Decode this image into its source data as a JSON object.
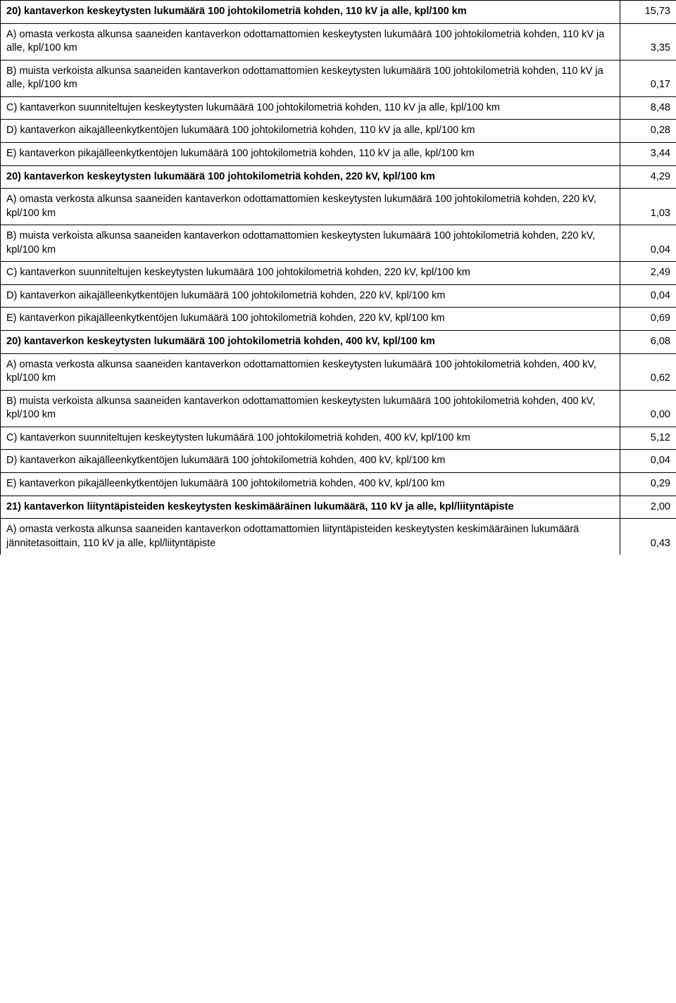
{
  "rows": [
    {
      "bold": true,
      "label": "20) kantaverkon keskeytysten lukumäärä 100 johtokilometriä kohden, 110 kV ja alle, kpl/100 km",
      "value": "15,73"
    },
    {
      "bold": false,
      "label": "A) omasta verkosta alkunsa saaneiden kantaverkon odottamattomien keskeytysten lukumäärä 100 johtokilometriä kohden, 110 kV ja alle, kpl/100 km",
      "value": "3,35"
    },
    {
      "bold": false,
      "label": "B) muista verkoista alkunsa saaneiden kantaverkon odottamattomien keskeytysten lukumäärä 100 johtokilometriä kohden, 110 kV ja alle, kpl/100 km",
      "value": "0,17"
    },
    {
      "bold": false,
      "label": "C) kantaverkon suunniteltujen keskeytysten lukumäärä 100 johtokilometriä kohden, 110 kV ja alle, kpl/100 km",
      "value": "8,48"
    },
    {
      "bold": false,
      "label": "D) kantaverkon aikajälleenkytkentöjen lukumäärä 100 johtokilometriä kohden, 110 kV ja alle, kpl/100 km",
      "value": "0,28"
    },
    {
      "bold": false,
      "label": "E) kantaverkon pikajälleenkytkentöjen lukumäärä 100 johtokilometriä kohden, 110 kV ja alle, kpl/100 km",
      "value": "3,44"
    },
    {
      "bold": true,
      "label": "20) kantaverkon keskeytysten lukumäärä 100 johtokilometriä kohden, 220 kV, kpl/100 km",
      "value": "4,29"
    },
    {
      "bold": false,
      "label": "A) omasta verkosta alkunsa saaneiden kantaverkon odottamattomien keskeytysten lukumäärä 100 johtokilometriä kohden, 220 kV, kpl/100 km",
      "value": "1,03"
    },
    {
      "bold": false,
      "label": "B) muista verkoista alkunsa saaneiden kantaverkon odottamattomien keskeytysten lukumäärä 100 johtokilometriä kohden, 220 kV, kpl/100 km",
      "value": "0,04"
    },
    {
      "bold": false,
      "label": "C) kantaverkon suunniteltujen keskeytysten lukumäärä 100 johtokilometriä kohden, 220 kV, kpl/100 km",
      "value": "2,49"
    },
    {
      "bold": false,
      "label": "D) kantaverkon aikajälleenkytkentöjen lukumäärä 100 johtokilometriä kohden, 220 kV, kpl/100 km",
      "value": "0,04"
    },
    {
      "bold": false,
      "label": "E) kantaverkon pikajälleenkytkentöjen lukumäärä 100 johtokilometriä kohden, 220 kV, kpl/100 km",
      "value": "0,69"
    },
    {
      "bold": true,
      "label": "20) kantaverkon keskeytysten lukumäärä 100 johtokilometriä kohden, 400 kV, kpl/100 km",
      "value": "6,08"
    },
    {
      "bold": false,
      "label": "A) omasta verkosta alkunsa saaneiden kantaverkon odottamattomien keskeytysten lukumäärä 100 johtokilometriä kohden, 400 kV, kpl/100 km",
      "value": "0,62"
    },
    {
      "bold": false,
      "label": "B) muista verkoista alkunsa saaneiden kantaverkon odottamattomien keskeytysten lukumäärä 100 johtokilometriä kohden, 400 kV, kpl/100 km",
      "value": "0,00"
    },
    {
      "bold": false,
      "label": "C) kantaverkon suunniteltujen keskeytysten lukumäärä 100 johtokilometriä kohden, 400 kV, kpl/100 km",
      "value": "5,12"
    },
    {
      "bold": false,
      "label": "D) kantaverkon aikajälleenkytkentöjen lukumäärä 100 johtokilometriä kohden, 400 kV, kpl/100 km",
      "value": "0,04"
    },
    {
      "bold": false,
      "label": "E) kantaverkon pikajälleenkytkentöjen lukumäärä 100 johtokilometriä kohden, 400 kV, kpl/100 km",
      "value": "0,29"
    },
    {
      "bold": true,
      "label": "21) kantaverkon liityntäpisteiden keskeytysten keskimääräinen lukumäärä, 110 kV ja alle, kpl/liityntäpiste",
      "value": "2,00"
    },
    {
      "bold": false,
      "label": "A) omasta verkosta alkunsa saaneiden kantaverkon odottamattomien liityntäpisteiden keskeytysten keskimääräinen lukumäärä jännitetasoittain, 110 kV ja alle, kpl/liityntäpiste",
      "value": "0,43",
      "lastOpen": true
    }
  ],
  "style": {
    "fontSize": 14.5,
    "fontFamily": "Arial, Helvetica, sans-serif",
    "textColor": "#000000",
    "borderColor": "#000000",
    "backgroundColor": "#ffffff",
    "labelColWidth": 880,
    "valueColWidth": 80,
    "pageWidth": 960
  }
}
